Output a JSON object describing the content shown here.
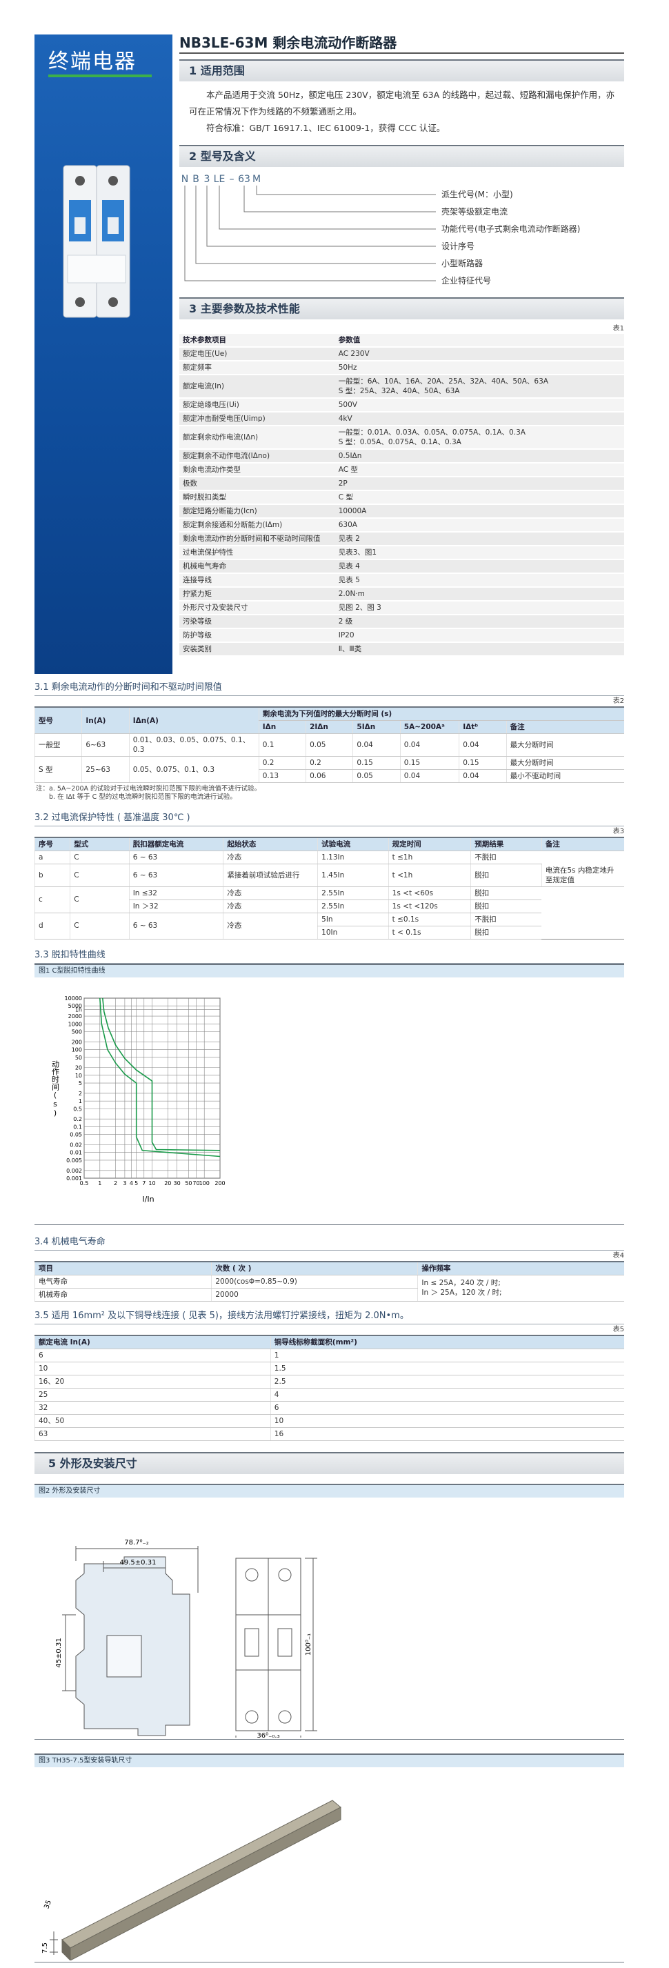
{
  "sidebar": {
    "brand": "终端电器"
  },
  "header": {
    "title": "NB3LE-63M  剩余电流动作断路器"
  },
  "section1": {
    "heading": "1 适用范围",
    "paragraphs": [
      "本产品适用于交流 50Hz，额定电压 230V，额定电流至 63A 的线路中，起过载、短路和漏电保护作用，亦可在正常情况下作为线路的不频繁通断之用。",
      "符合标准：GB/T 16917.1、IEC 61009-1，获得 CCC 认证。"
    ]
  },
  "section2": {
    "heading": "2 型号及含义",
    "code": [
      "N",
      "B",
      "3",
      "LE",
      "–",
      "63",
      "M"
    ],
    "meanings": [
      "派生代号(M：小型)",
      "壳架等级额定电流",
      "功能代号(电子式剩余电流动作断路器)",
      "设计序号",
      "小型断路器",
      "企业特征代号"
    ]
  },
  "section3": {
    "heading": "3 主要参数及技术性能",
    "table1": {
      "label": "表1",
      "header": [
        [
          "技术参数项目",
          "参数值"
        ]
      ],
      "rows": [
        [
          "额定电压(Ue)",
          "AC 230V"
        ],
        [
          "额定频率",
          "50Hz"
        ],
        [
          "额定电流(In)",
          "一般型：6A、10A、16A、20A、25A、32A、40A、50A、63A\nS 型：25A、32A、40A、50A、63A"
        ],
        [
          "额定绝缘电压(Ui)",
          "500V"
        ],
        [
          "额定冲击耐受电压(Uimp)",
          "4kV"
        ],
        [
          "额定剩余动作电流(IΔn)",
          "一般型：0.01A、0.03A、0.05A、0.075A、0.1A、0.3A\nS 型：0.05A、0.075A、0.1A、0.3A"
        ],
        [
          "额定剩余不动作电流(IΔno)",
          "0.5IΔn"
        ],
        [
          "剩余电流动作类型",
          "AC 型"
        ],
        [
          "极数",
          "2P"
        ],
        [
          "瞬时脱扣类型",
          "C 型"
        ],
        [
          "额定短路分断能力(Icn)",
          "10000A"
        ],
        [
          "额定剩余接通和分断能力(IΔm)",
          "630A"
        ],
        [
          "剩余电流动作的分断时间和不驱动时间限值",
          "见表 2"
        ],
        [
          "过电流保护特性",
          "见表3、图1"
        ],
        [
          "机械电气寿命",
          "见表 4"
        ],
        [
          "连接导线",
          "见表 5"
        ],
        [
          "拧紧力矩",
          "2.0N·m"
        ],
        [
          "外形尺寸及安装尺寸",
          "见图 2、图 3"
        ],
        [
          "污染等级",
          "2 级"
        ],
        [
          "防护等级",
          "IP20"
        ],
        [
          "安装类别",
          "Ⅱ、Ⅲ类"
        ]
      ]
    },
    "sub31": {
      "heading": "3.1 剩余电流动作的分断时间和不驱动时间限值",
      "table": {
        "label": "表2",
        "header": [
          [
            "型号",
            "In(A)",
            "IΔn(A)",
            "剩余电流为下列值时的最大分断时间 (s)"
          ],
          [
            "IΔn",
            "2IΔn",
            "5IΔn",
            "5A~200Aᵃ",
            "IΔtᵇ",
            "备注"
          ]
        ],
        "rows": [
          [
            "一般型",
            "6~63",
            "0.01、0.03、0.05、0.075、0.1、0.3",
            "0.1",
            "0.05",
            "0.04",
            "0.04",
            "0.04",
            "最大分断时间"
          ],
          [
            "S 型",
            "25~63",
            "0.05、0.075、0.1、0.3",
            "0.2",
            "0.2",
            "0.15",
            "0.15",
            "0.15",
            "最大分断时间"
          ],
          [
            "0.13",
            "0.06",
            "0.05",
            "0.04",
            "0.04",
            "最小不驱动时间"
          ]
        ]
      },
      "notes": [
        "注：a. 5A~200A 的试验对于过电流瞬时脱扣范围下限的电流值不进行试验。",
        "b. 在 IΔt 等于 C 型的过电流瞬时脱扣范围下限的电流进行试验。"
      ]
    },
    "sub32": {
      "heading": "3.2 过电流保护特性 ( 基准温度 30℃ )",
      "table": {
        "label": "表3",
        "header": [
          [
            "序号",
            "型式",
            "脱扣器额定电流",
            "起始状态",
            "试验电流",
            "规定时间",
            "预期结果",
            "备注"
          ]
        ],
        "rows": [
          [
            "a",
            "C",
            "6 ~ 63",
            "冷态",
            "1.13In",
            "t ≤1h",
            "不脱扣"
          ],
          [
            "b",
            "C",
            "6 ~ 63",
            "紧接着前项试验后进行",
            "1.45In",
            "t <1h",
            "脱扣",
            "电流在5s 内稳定地升至规定值"
          ],
          [
            "c",
            "C",
            "In ≤32",
            "冷态",
            "2.55In",
            "1s <t <60s",
            "脱扣"
          ],
          [
            "In ＞32",
            "冷态",
            "2.55In",
            "1s <t <120s",
            "脱扣"
          ],
          [
            "d",
            "C",
            "6 ~ 63",
            "冷态",
            "5In",
            "t ≤0.1s",
            "不脱扣"
          ],
          [
            "10In",
            "t < 0.1s",
            "脱扣"
          ]
        ]
      }
    },
    "sub33": {
      "heading": "3.3 脱扣特性曲线",
      "figure": {
        "caption": "图1 C型脱扣特性曲线",
        "ylabel": "动作时间(s)",
        "xlabel": "I/In",
        "log_x": true,
        "log_y": true,
        "xlim": [
          0.5,
          200
        ],
        "ylim": [
          0.001,
          10000
        ],
        "xticks": [
          0.5,
          1,
          2,
          3,
          4,
          5,
          7,
          10,
          20,
          30,
          50,
          70,
          100,
          200
        ],
        "yticks": [
          10000,
          5000,
          {
            "value": 3600,
            "label": "1h"
          },
          2000,
          1000,
          500,
          200,
          100,
          50,
          20,
          10,
          5,
          2,
          1,
          0.5,
          0.2,
          0.1,
          0.05,
          0.02,
          0.01,
          0.005,
          0.002,
          0.001
        ],
        "color": "#1a9a4a"
      }
    },
    "sub34": {
      "heading": "3.4 机械电气寿命",
      "table": {
        "label": "表4",
        "header": [
          [
            "项目",
            "次数 ( 次 )",
            "操作频率"
          ]
        ],
        "rows": [
          [
            "电气寿命",
            "2000(cosΦ=0.85~0.9)",
            "In ≤ 25A，240 次 / 时;\nIn ＞ 25A，120 次 / 时;"
          ],
          [
            "机械寿命",
            "20000"
          ]
        ]
      }
    },
    "sub35": {
      "heading": "3.5 适用 16mm² 及以下铜导线连接 ( 见表 5)，接线方法用螺钉拧紧接线，扭矩为 2.0N•m。",
      "table": {
        "label": "表5",
        "header": [
          [
            "额定电流 In(A)",
            "铜导线标称截面积(mm²)"
          ]
        ],
        "rows": [
          [
            "6",
            "1"
          ],
          [
            "10",
            "1.5"
          ],
          [
            "16、20",
            "2.5"
          ],
          [
            "25",
            "4"
          ],
          [
            "32",
            "6"
          ],
          [
            "40、50",
            "10"
          ],
          [
            "63",
            "16"
          ]
        ]
      }
    }
  },
  "section5": {
    "heading": "5 外形及安装尺寸",
    "figure2": {
      "caption": "图2 外形及安装尺寸",
      "dims": [
        "78.7⁰₋₂",
        "49.5±0.31",
        "45±0.31",
        "100⁰₋₁",
        "36⁰₋₀.₃"
      ]
    },
    "figure3": {
      "caption": "图3 TH35-7.5型安装导轨尺寸",
      "dims": [
        "35",
        "7.5"
      ]
    }
  }
}
